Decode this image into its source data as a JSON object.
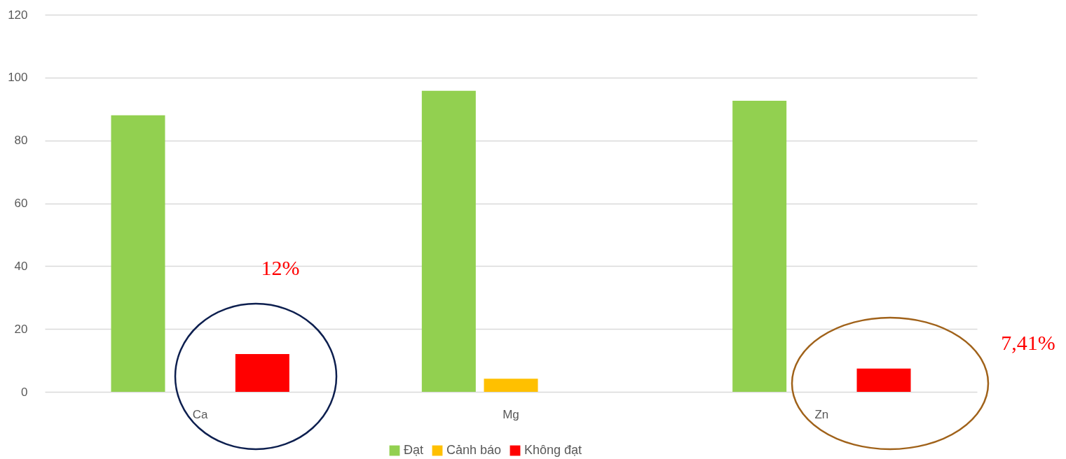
{
  "chart_data": {
    "type": "bar",
    "categories": [
      "Ca",
      "Mg",
      "Zn"
    ],
    "series": [
      {
        "name": "Đạt",
        "color": "#92d050",
        "values": [
          88,
          95.8,
          92.6
        ]
      },
      {
        "name": "Cảnh báo",
        "color": "#ffc000",
        "values": [
          null,
          4.2,
          null
        ]
      },
      {
        "name": "Không đạt",
        "color": "#ff0000",
        "values": [
          12,
          null,
          7.4
        ]
      }
    ],
    "ylim": [
      0,
      120
    ],
    "yticks": [
      0,
      20,
      40,
      60,
      80,
      100,
      120
    ],
    "grid": "y",
    "legend": "bottom",
    "annotations": [
      "12%",
      "7,41%"
    ]
  }
}
